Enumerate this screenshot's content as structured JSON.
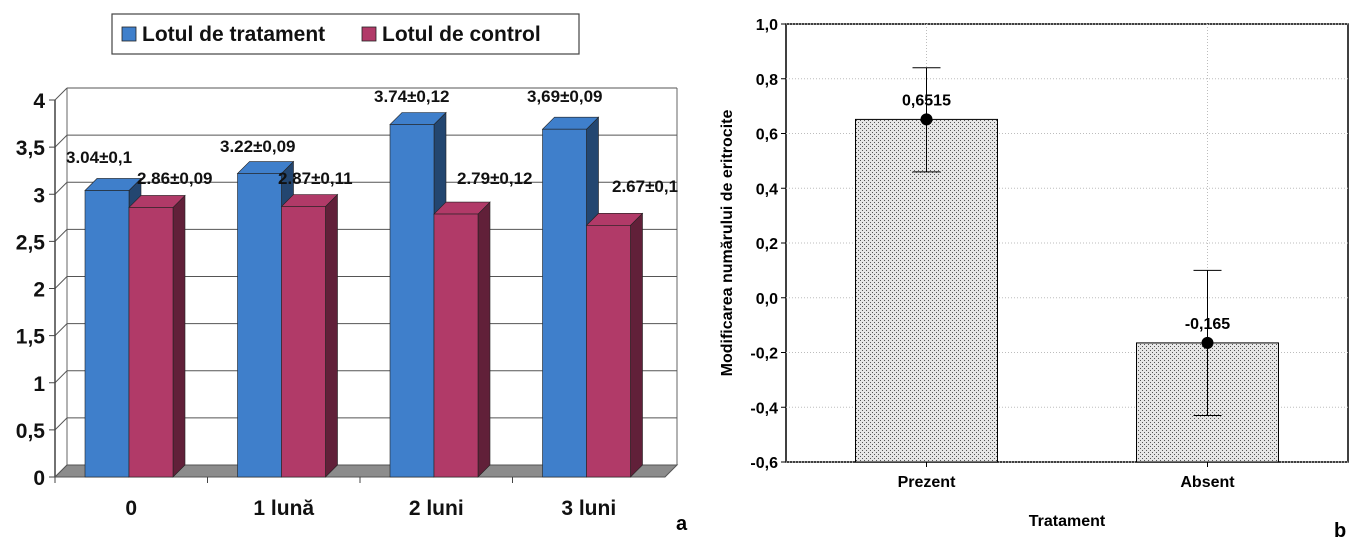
{
  "panels": {
    "a": {
      "letter": "a"
    },
    "b": {
      "letter": "b"
    }
  },
  "colors": {
    "treatment": "#3F7FCB",
    "control": "#B13A68",
    "hatch_fill": "#cfcfcf",
    "grid": "#bdbdbd"
  },
  "chart_data": [
    {
      "type": "bar",
      "style": "3d-grouped",
      "categories": [
        "0",
        "1 lună",
        "2 luni",
        "3 luni"
      ],
      "series": [
        {
          "name": "Lotul de tratament",
          "values": [
            3.04,
            3.22,
            3.74,
            3.69
          ],
          "labels": [
            "3.04±0,1",
            "3.22±0,09",
            "3.74±0,12",
            "3,69±0,09"
          ]
        },
        {
          "name": "Lotul de control",
          "values": [
            2.86,
            2.87,
            2.79,
            2.67
          ],
          "labels": [
            "2.86±0,09",
            "2.87±0,11",
            "2.79±0,12",
            "2.67±0,1"
          ]
        }
      ],
      "ylim": [
        0,
        4
      ],
      "yticks": [
        "0",
        "0,5",
        "1",
        "1,5",
        "2",
        "2,5",
        "3",
        "3,5",
        "4"
      ],
      "ytick_values": [
        0,
        0.5,
        1,
        1.5,
        2,
        2.5,
        3,
        3.5,
        4
      ],
      "grid": true,
      "legend": "top"
    },
    {
      "type": "bar",
      "style": "hatched-with-error-bars",
      "xlabel": "Tratament",
      "ylabel": "Modificarea numărului de eritrocite",
      "categories": [
        "Prezent",
        "Absent"
      ],
      "values": [
        0.6515,
        -0.165
      ],
      "value_labels": [
        "0,6515",
        "-0,165"
      ],
      "error_low": [
        0.46,
        -0.43
      ],
      "error_high": [
        0.84,
        0.1
      ],
      "ylim": [
        -0.6,
        1.0
      ],
      "yticks": [
        "-0,6",
        "-0,4",
        "-0,2",
        "0,0",
        "0,2",
        "0,4",
        "0,6",
        "0,8",
        "1,0"
      ],
      "ytick_values": [
        -0.6,
        -0.4,
        -0.2,
        0.0,
        0.2,
        0.4,
        0.6,
        0.8,
        1.0
      ],
      "grid": true
    }
  ]
}
